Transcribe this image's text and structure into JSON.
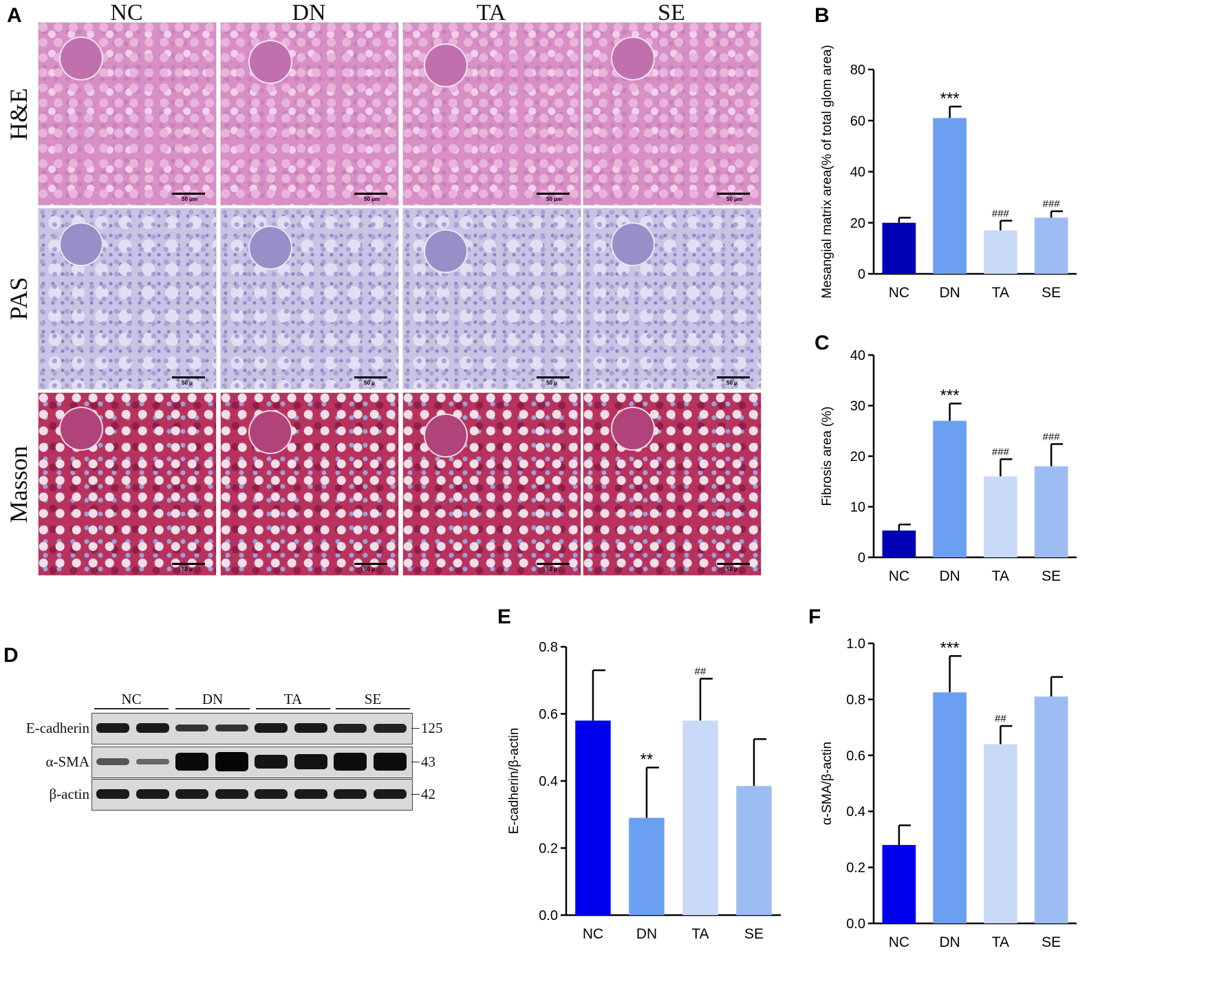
{
  "panels": {
    "A": "A",
    "B": "B",
    "C": "C",
    "D": "D",
    "E": "E",
    "F": "F"
  },
  "histology": {
    "columns": [
      "NC",
      "DN",
      "TA",
      "SE"
    ],
    "rows": [
      "H&E",
      "PAS",
      "Masson"
    ],
    "scale_labels": [
      [
        "50 μm",
        "50 μm",
        "50 μm",
        "50 μm"
      ],
      [
        "50 μ",
        "50 μ",
        "50 μ",
        "50 μ"
      ],
      [
        "50 μ",
        "50 μ",
        "50 μ",
        "50 μ"
      ]
    ],
    "stain_colors": [
      "#d78fc6",
      "#c9c3e4",
      "#b8325e"
    ]
  },
  "western_blot": {
    "groups": [
      "NC",
      "DN",
      "TA",
      "SE"
    ],
    "proteins": [
      "E-cadherin",
      "α-SMA",
      "β-actin"
    ],
    "kda": [
      "125",
      "43",
      "42"
    ]
  },
  "chart_data": [
    {
      "id": "B",
      "type": "bar",
      "categories": [
        "NC",
        "DN",
        "TA",
        "SE"
      ],
      "values": [
        20,
        61,
        17,
        22
      ],
      "errors": [
        2.0,
        4.5,
        3.8,
        2.5
      ],
      "annotations": [
        "",
        "***",
        "###",
        "###"
      ],
      "colors": [
        "#0000b5",
        "#6b9ff2",
        "#c8daf7",
        "#9cbcf2"
      ],
      "ylabel": "Mesangial matrix area(% of total glom area)",
      "ylim": [
        0,
        80
      ],
      "yticks": [
        "0",
        "20",
        "40",
        "60",
        "80"
      ]
    },
    {
      "id": "C",
      "type": "bar",
      "categories": [
        "NC",
        "DN",
        "TA",
        "SE"
      ],
      "values": [
        5.3,
        27,
        16,
        18
      ],
      "errors": [
        1.2,
        3.4,
        3.4,
        4.4
      ],
      "annotations": [
        "",
        "***",
        "###",
        "###"
      ],
      "colors": [
        "#0000b5",
        "#6b9ff2",
        "#c8daf7",
        "#9cbcf2"
      ],
      "ylabel": "Fibrosis area (%)",
      "ylim": [
        0,
        40
      ],
      "yticks": [
        "0",
        "10",
        "20",
        "30",
        "40"
      ]
    },
    {
      "id": "E",
      "type": "bar",
      "categories": [
        "NC",
        "DN",
        "TA",
        "SE"
      ],
      "values": [
        0.58,
        0.29,
        0.58,
        0.385
      ],
      "errors": [
        0.15,
        0.15,
        0.125,
        0.14
      ],
      "annotations": [
        "",
        "**",
        "##",
        ""
      ],
      "colors": [
        "#0000f0",
        "#6b9ff2",
        "#c8daf7",
        "#9cbcf2"
      ],
      "ylabel": "E-cadherin/β-actin",
      "ylim": [
        0,
        0.8
      ],
      "yticks": [
        "0.0",
        "0.2",
        "0.4",
        "0.6",
        "0.8"
      ]
    },
    {
      "id": "F",
      "type": "bar",
      "categories": [
        "NC",
        "DN",
        "TA",
        "SE"
      ],
      "values": [
        0.28,
        0.825,
        0.64,
        0.81
      ],
      "errors": [
        0.07,
        0.13,
        0.065,
        0.07
      ],
      "annotations": [
        "",
        "***",
        "##",
        ""
      ],
      "colors": [
        "#0000f0",
        "#6b9ff2",
        "#c8daf7",
        "#9cbcf2"
      ],
      "ylabel": "α-SMA/β-actin",
      "ylim": [
        0,
        1.0
      ],
      "yticks": [
        "0.0",
        "0.2",
        "0.4",
        "0.6",
        "0.8",
        "1.0"
      ]
    }
  ]
}
